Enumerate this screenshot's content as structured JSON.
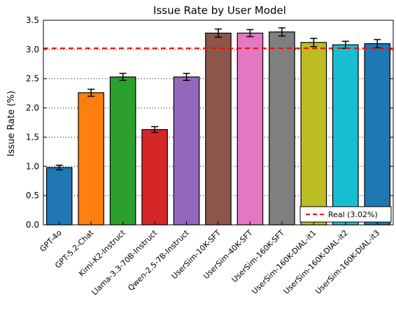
{
  "chart_data": {
    "type": "bar",
    "title": "Issue Rate by User Model",
    "xlabel": "",
    "ylabel": "Issue Rate (%)",
    "ylim": [
      0,
      3.5
    ],
    "yticks": [
      "0.0",
      "0.5",
      "1.0",
      "1.5",
      "2.0",
      "2.5",
      "3.0",
      "3.5"
    ],
    "grid": "horizontal dotted",
    "categories": [
      "GPT-4o",
      "GPT-5.2-Chat",
      "Kimi-K2-Instruct",
      "Llama-3.3-70B-Instruct",
      "Qwen-2.5-7B-Instruct",
      "UserSim-10K-SFT",
      "UserSim-40K-SFT",
      "UserSim-160K-SFT",
      "UserSim-160K-DIAL-it1",
      "UserSim-160K-DIAL-it2",
      "UserSim-160K-DIAL-it3"
    ],
    "values": [
      0.98,
      2.26,
      2.53,
      1.63,
      2.53,
      3.28,
      3.28,
      3.3,
      3.12,
      3.08,
      3.1
    ],
    "errors": [
      0.04,
      0.06,
      0.06,
      0.05,
      0.06,
      0.07,
      0.06,
      0.07,
      0.07,
      0.06,
      0.07
    ],
    "colors": [
      "#1f77b4",
      "#ff7f0e",
      "#2ca02c",
      "#d62728",
      "#9467bd",
      "#8c564b",
      "#e377c2",
      "#7f7f7f",
      "#bcbd22",
      "#17becf",
      "#1f77b4"
    ],
    "reference_line": {
      "value": 3.02,
      "label": "Real (3.02%)",
      "color": "#ff0000",
      "style": "dashed"
    },
    "legend_position": "bottom-right"
  }
}
